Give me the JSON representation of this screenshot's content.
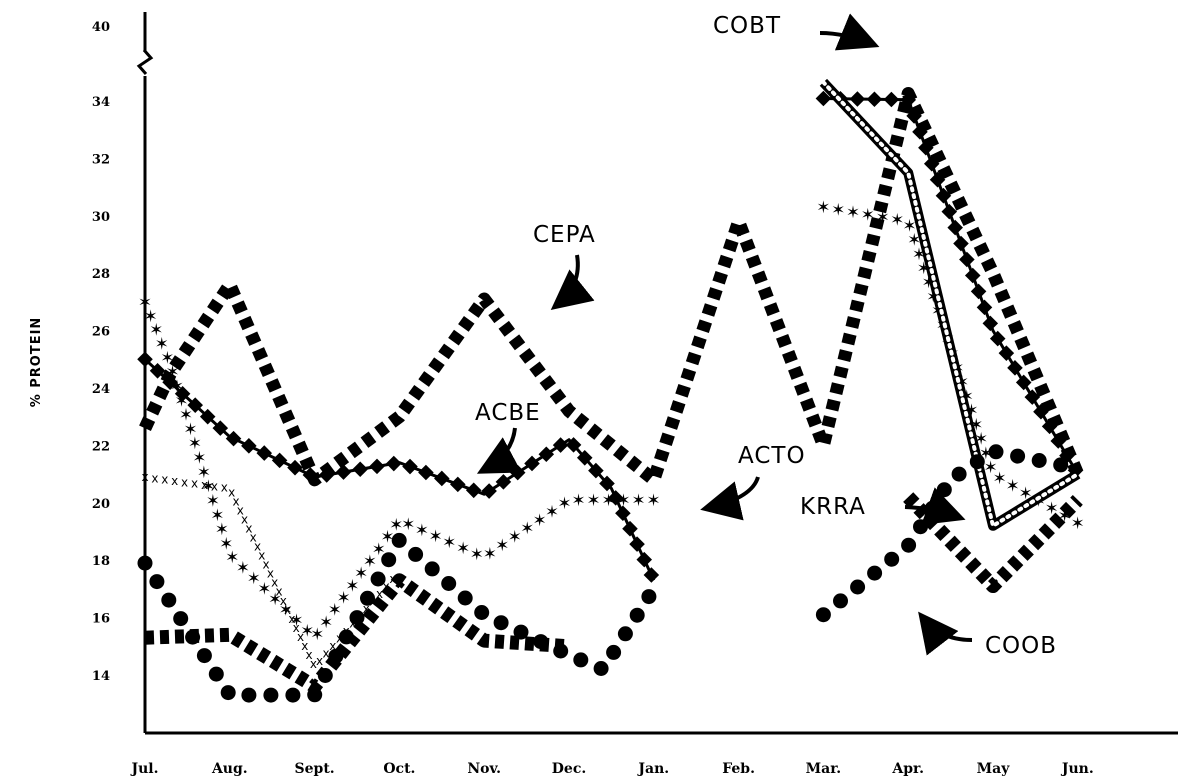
{
  "chart_data": {
    "type": "line",
    "title": "",
    "xlabel": "",
    "ylabel": "% PROTEIN",
    "axis_break": true,
    "grid": false,
    "legend": "direct labels with arrows",
    "x_categories": [
      "Jul.",
      "Aug.",
      "Sept.",
      "Oct.",
      "Nov.",
      "Dec.",
      "Jan.",
      "Feb.",
      "Mar.",
      "Apr.",
      "May",
      "Jun."
    ],
    "y_ticks": [
      "14",
      "16",
      "18",
      "20",
      "22",
      "24",
      "26",
      "28",
      "30",
      "32",
      "34",
      "40"
    ],
    "y_axis_note": "axis broken between 34 and 40",
    "series": [
      {
        "name": "CEPA",
        "style": "heavy-dash",
        "points": [
          [
            0,
            22.6
          ],
          [
            0.3,
            24.5
          ],
          [
            1,
            27.6
          ],
          [
            2,
            20.8
          ],
          [
            3,
            23.0
          ],
          [
            4,
            27.1
          ],
          [
            5,
            23.2
          ],
          [
            6,
            20.8
          ],
          [
            7,
            29.8
          ],
          [
            8,
            22.0
          ],
          [
            9,
            34.6
          ],
          [
            10,
            28.0
          ],
          [
            11,
            21.0
          ]
        ]
      },
      {
        "name": "ACBE",
        "style": "diamond",
        "points": [
          [
            0,
            25.0
          ],
          [
            1,
            22.3
          ],
          [
            2,
            20.9
          ],
          [
            3,
            21.4
          ],
          [
            4,
            20.3
          ],
          [
            5,
            22.2
          ],
          [
            5.5,
            20.5
          ],
          [
            6,
            17.3
          ]
        ]
      },
      {
        "name": "ACTO",
        "style": "star",
        "points": [
          [
            0,
            27.0
          ],
          [
            0.3,
            24.8
          ],
          [
            1,
            18.2
          ],
          [
            2,
            15.3
          ],
          [
            3,
            19.4
          ],
          [
            4,
            18.1
          ],
          [
            5,
            20.1
          ],
          [
            6,
            20.1
          ]
        ]
      },
      {
        "name": "ACTO (spring)",
        "style": "star",
        "points": [
          [
            8,
            30.3
          ],
          [
            9,
            29.8
          ],
          [
            10,
            21.0
          ],
          [
            11,
            19.3
          ]
        ]
      },
      {
        "name": "COBT",
        "style": "diamond",
        "points": [
          [
            8,
            34.2
          ],
          [
            9,
            34.1
          ],
          [
            10,
            26.0
          ],
          [
            11,
            21.0
          ]
        ]
      },
      {
        "name": "COBT (white-dotted)",
        "style": "dotted-heavy",
        "points": [
          [
            8,
            35.5
          ],
          [
            9,
            31.5
          ],
          [
            10,
            19.2
          ],
          [
            11,
            21.0
          ]
        ]
      },
      {
        "name": "KRRA",
        "style": "slash",
        "points": [
          [
            0,
            15.3
          ],
          [
            1,
            15.4
          ],
          [
            2,
            13.6
          ],
          [
            3,
            17.3
          ],
          [
            4,
            15.2
          ],
          [
            5,
            15.0
          ]
        ]
      },
      {
        "name": "KRRA (spring)",
        "style": "slash",
        "points": [
          [
            9,
            20.2
          ],
          [
            10,
            17.1
          ],
          [
            11,
            20.1
          ]
        ]
      },
      {
        "name": "COOB",
        "style": "dot",
        "points": [
          [
            0,
            17.9
          ],
          [
            1,
            13.3
          ],
          [
            2,
            13.3
          ],
          [
            3,
            18.7
          ],
          [
            4,
            16.1
          ],
          [
            5,
            14.7
          ],
          [
            5.4,
            14.2
          ],
          [
            6,
            17.0
          ]
        ]
      },
      {
        "name": "COOB (spring)",
        "style": "dot",
        "points": [
          [
            8,
            16.1
          ],
          [
            9,
            18.5
          ],
          [
            9.5,
            20.8
          ],
          [
            10,
            21.8
          ],
          [
            11,
            21.2
          ]
        ]
      },
      {
        "name": "xxxx",
        "style": "cross",
        "points": [
          [
            0,
            20.9
          ],
          [
            1,
            20.5
          ],
          [
            2,
            14.3
          ],
          [
            3,
            17.6
          ]
        ]
      }
    ],
    "annotations": [
      {
        "text": "CEPA",
        "target_series": "CEPA"
      },
      {
        "text": "ACBE",
        "target_series": "ACBE"
      },
      {
        "text": "ACTO",
        "target_series": "ACTO"
      },
      {
        "text": "COBT",
        "target_series": "COBT"
      },
      {
        "text": "KRRA",
        "target_series": "KRRA"
      },
      {
        "text": "COOB",
        "target_series": "COOB"
      }
    ]
  }
}
